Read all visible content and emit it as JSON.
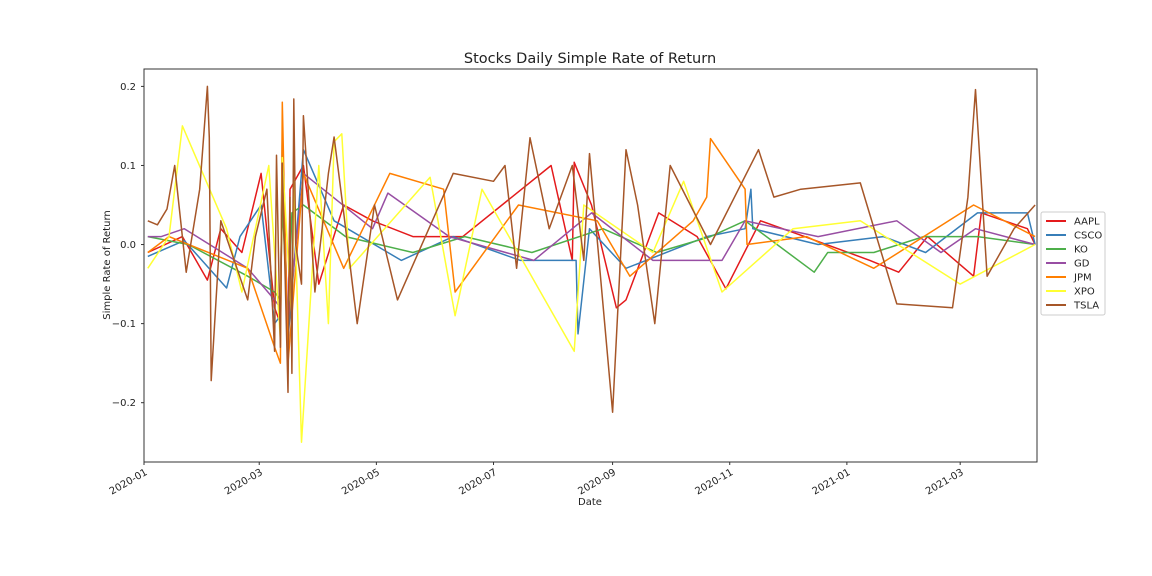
{
  "chart_data": {
    "type": "line",
    "title": "Stocks Daily Simple Rate of Return",
    "xlabel": "Date",
    "ylabel": "Simple Rate of Return",
    "xlim": [
      "2020-01-01",
      "2021-04-10"
    ],
    "ylim": [
      -0.275,
      0.222
    ],
    "x_ticks": [
      "2020-01",
      "2020-03",
      "2020-05",
      "2020-07",
      "2020-09",
      "2020-11",
      "2021-01",
      "2021-03"
    ],
    "y_ticks": [
      -0.2,
      -0.1,
      0.0,
      0.1,
      0.2
    ],
    "y_tick_labels": [
      "−0.2",
      "−0.1",
      "0.0",
      "0.1",
      "0.2"
    ],
    "grid": false,
    "legend_position": "right",
    "series": [
      {
        "name": "AAPL",
        "color": "#e41a1c",
        "x": [
          "2020-01-03",
          "2020-01-21",
          "2020-02-03",
          "2020-02-10",
          "2020-02-21",
          "2020-03-02",
          "2020-03-09",
          "2020-03-12",
          "2020-03-13",
          "2020-03-16",
          "2020-03-17",
          "2020-03-24",
          "2020-04-01",
          "2020-04-14",
          "2020-04-29",
          "2020-05-20",
          "2020-06-15",
          "2020-07-31",
          "2020-08-11",
          "2020-08-12",
          "2020-08-21",
          "2020-09-03",
          "2020-09-08",
          "2020-09-25",
          "2020-10-15",
          "2020-10-30",
          "2020-11-17",
          "2020-12-10",
          "2021-01-13",
          "2021-01-28",
          "2021-02-12",
          "2021-03-08",
          "2021-03-12",
          "2021-04-05",
          "2021-04-09"
        ],
        "values": [
          -0.01,
          0.01,
          -0.045,
          0.02,
          -0.01,
          0.09,
          -0.08,
          -0.1,
          0.12,
          -0.13,
          0.07,
          0.1,
          -0.05,
          0.05,
          0.03,
          0.01,
          0.01,
          0.1,
          -0.02,
          0.104,
          0.05,
          -0.08,
          -0.07,
          0.04,
          0.01,
          -0.056,
          0.03,
          0.01,
          -0.02,
          -0.035,
          0.01,
          -0.04,
          0.04,
          0.02,
          0.0
        ]
      },
      {
        "name": "CSCO",
        "color": "#377eb8",
        "x": [
          "2020-01-03",
          "2020-01-22",
          "2020-02-13",
          "2020-02-20",
          "2020-03-02",
          "2020-03-09",
          "2020-03-12",
          "2020-03-13",
          "2020-03-16",
          "2020-03-24",
          "2020-04-09",
          "2020-05-14",
          "2020-06-10",
          "2020-07-15",
          "2020-08-13",
          "2020-08-14",
          "2020-08-20",
          "2020-09-08",
          "2020-10-20",
          "2020-11-09",
          "2020-11-12",
          "2020-11-13",
          "2020-12-17",
          "2021-01-20",
          "2021-02-11",
          "2021-03-10",
          "2021-04-05",
          "2021-04-09"
        ],
        "values": [
          -0.015,
          0.005,
          -0.055,
          0.01,
          0.05,
          -0.1,
          -0.09,
          0.14,
          -0.12,
          0.12,
          0.03,
          -0.02,
          0.01,
          -0.02,
          -0.02,
          -0.113,
          0.02,
          -0.03,
          0.01,
          0.02,
          0.07,
          0.02,
          0.0,
          0.01,
          -0.01,
          0.04,
          0.04,
          0.0
        ]
      },
      {
        "name": "KO",
        "color": "#4daf4a",
        "x": [
          "2020-01-03",
          "2020-01-24",
          "2020-02-24",
          "2020-03-09",
          "2020-03-12",
          "2020-03-13",
          "2020-03-16",
          "2020-03-18",
          "2020-03-24",
          "2020-04-15",
          "2020-05-20",
          "2020-06-16",
          "2020-07-21",
          "2020-08-27",
          "2020-09-24",
          "2020-10-22",
          "2020-11-09",
          "2020-12-15",
          "2020-12-22",
          "2021-01-15",
          "2021-02-10",
          "2021-03-10",
          "2021-04-09"
        ],
        "values": [
          0.01,
          0.0,
          -0.04,
          -0.06,
          -0.07,
          0.05,
          -0.1,
          0.04,
          0.05,
          0.01,
          -0.01,
          0.01,
          -0.01,
          0.02,
          -0.01,
          0.01,
          0.03,
          -0.035,
          -0.01,
          -0.01,
          0.01,
          0.01,
          0.0
        ]
      },
      {
        "name": "GD",
        "color": "#984ea3",
        "x": [
          "2020-01-03",
          "2020-01-10",
          "2020-01-22",
          "2020-02-24",
          "2020-03-09",
          "2020-03-12",
          "2020-03-13",
          "2020-03-16",
          "2020-03-24",
          "2020-04-29",
          "2020-05-07",
          "2020-06-08",
          "2020-07-22",
          "2020-08-21",
          "2020-09-22",
          "2020-10-28",
          "2020-11-09",
          "2020-12-17",
          "2021-01-27",
          "2021-02-19",
          "2021-03-09",
          "2021-04-09"
        ],
        "values": [
          0.01,
          0.01,
          0.02,
          -0.03,
          -0.07,
          -0.08,
          0.1,
          -0.1,
          0.09,
          0.02,
          0.065,
          0.01,
          -0.02,
          0.04,
          -0.02,
          -0.02,
          0.03,
          0.01,
          0.03,
          -0.01,
          0.02,
          0.0
        ]
      },
      {
        "name": "JPM",
        "color": "#ff7f00",
        "x": [
          "2020-01-03",
          "2020-01-14",
          "2020-02-24",
          "2020-03-09",
          "2020-03-12",
          "2020-03-13",
          "2020-03-16",
          "2020-03-24",
          "2020-04-14",
          "2020-05-08",
          "2020-06-05",
          "2020-06-11",
          "2020-07-14",
          "2020-08-24",
          "2020-09-10",
          "2020-10-13",
          "2020-10-20",
          "2020-10-22",
          "2020-11-09",
          "2020-11-10",
          "2020-12-11",
          "2021-01-15",
          "2021-02-23",
          "2021-03-08",
          "2021-04-09"
        ],
        "values": [
          -0.01,
          0.01,
          -0.03,
          -0.13,
          -0.15,
          0.18,
          -0.15,
          0.09,
          -0.03,
          0.09,
          0.07,
          -0.06,
          0.05,
          0.03,
          -0.04,
          0.03,
          0.06,
          0.134,
          0.07,
          0.0,
          0.01,
          -0.03,
          0.03,
          0.05,
          0.01
        ]
      },
      {
        "name": "XPO",
        "color": "#ffff33",
        "x": [
          "2020-01-03",
          "2020-01-14",
          "2020-01-21",
          "2020-02-13",
          "2020-02-21",
          "2020-03-06",
          "2020-03-12",
          "2020-03-13",
          "2020-03-18",
          "2020-03-19",
          "2020-03-23",
          "2020-04-01",
          "2020-04-06",
          "2020-04-09",
          "2020-04-13",
          "2020-04-17",
          "2020-05-29",
          "2020-06-11",
          "2020-06-25",
          "2020-08-12",
          "2020-08-17",
          "2020-09-22",
          "2020-10-08",
          "2020-10-28",
          "2020-12-04",
          "2021-01-08",
          "2021-03-01",
          "2021-04-09"
        ],
        "values": [
          -0.03,
          0.01,
          0.15,
          0.02,
          -0.06,
          0.1,
          -0.12,
          0.11,
          -0.1,
          0.08,
          -0.25,
          0.1,
          -0.1,
          0.13,
          0.14,
          -0.03,
          0.085,
          -0.09,
          0.07,
          -0.135,
          0.05,
          -0.01,
          0.08,
          -0.06,
          0.02,
          0.03,
          -0.05,
          0.0
        ]
      },
      {
        "name": "TSLA",
        "color": "#a65628",
        "x": [
          "2020-01-03",
          "2020-01-08",
          "2020-01-13",
          "2020-01-17",
          "2020-01-23",
          "2020-01-30",
          "2020-02-03",
          "2020-02-04",
          "2020-02-05",
          "2020-02-10",
          "2020-02-24",
          "2020-02-28",
          "2020-03-05",
          "2020-03-09",
          "2020-03-10",
          "2020-03-12",
          "2020-03-13",
          "2020-03-16",
          "2020-03-17",
          "2020-03-18",
          "2020-03-19",
          "2020-03-20",
          "2020-03-23",
          "2020-03-24",
          "2020-03-30",
          "2020-04-06",
          "2020-04-09",
          "2020-04-14",
          "2020-04-21",
          "2020-04-30",
          "2020-05-12",
          "2020-06-10",
          "2020-07-01",
          "2020-07-07",
          "2020-07-13",
          "2020-07-20",
          "2020-07-30",
          "2020-08-11",
          "2020-08-17",
          "2020-08-20",
          "2020-09-01",
          "2020-09-08",
          "2020-09-14",
          "2020-09-23",
          "2020-10-01",
          "2020-10-22",
          "2020-11-16",
          "2020-11-24",
          "2020-12-08",
          "2021-01-08",
          "2021-01-27",
          "2021-02-25",
          "2021-03-05",
          "2021-03-09",
          "2021-03-15",
          "2021-03-29",
          "2021-04-09"
        ],
        "values": [
          0.03,
          0.025,
          0.045,
          0.1,
          -0.035,
          0.07,
          0.2,
          0.135,
          -0.172,
          0.03,
          -0.07,
          0.01,
          0.07,
          -0.135,
          0.113,
          -0.13,
          0.103,
          -0.187,
          0.06,
          -0.163,
          0.184,
          0.0,
          -0.05,
          0.163,
          -0.06,
          0.09,
          0.136,
          0.04,
          -0.1,
          0.05,
          -0.07,
          0.09,
          0.08,
          0.1,
          -0.03,
          0.135,
          0.02,
          0.1,
          -0.02,
          0.115,
          -0.212,
          0.12,
          0.05,
          -0.1,
          0.1,
          0.0,
          0.12,
          0.06,
          0.07,
          0.078,
          -0.075,
          -0.08,
          0.06,
          0.196,
          -0.04,
          0.02,
          0.05
        ]
      }
    ]
  }
}
